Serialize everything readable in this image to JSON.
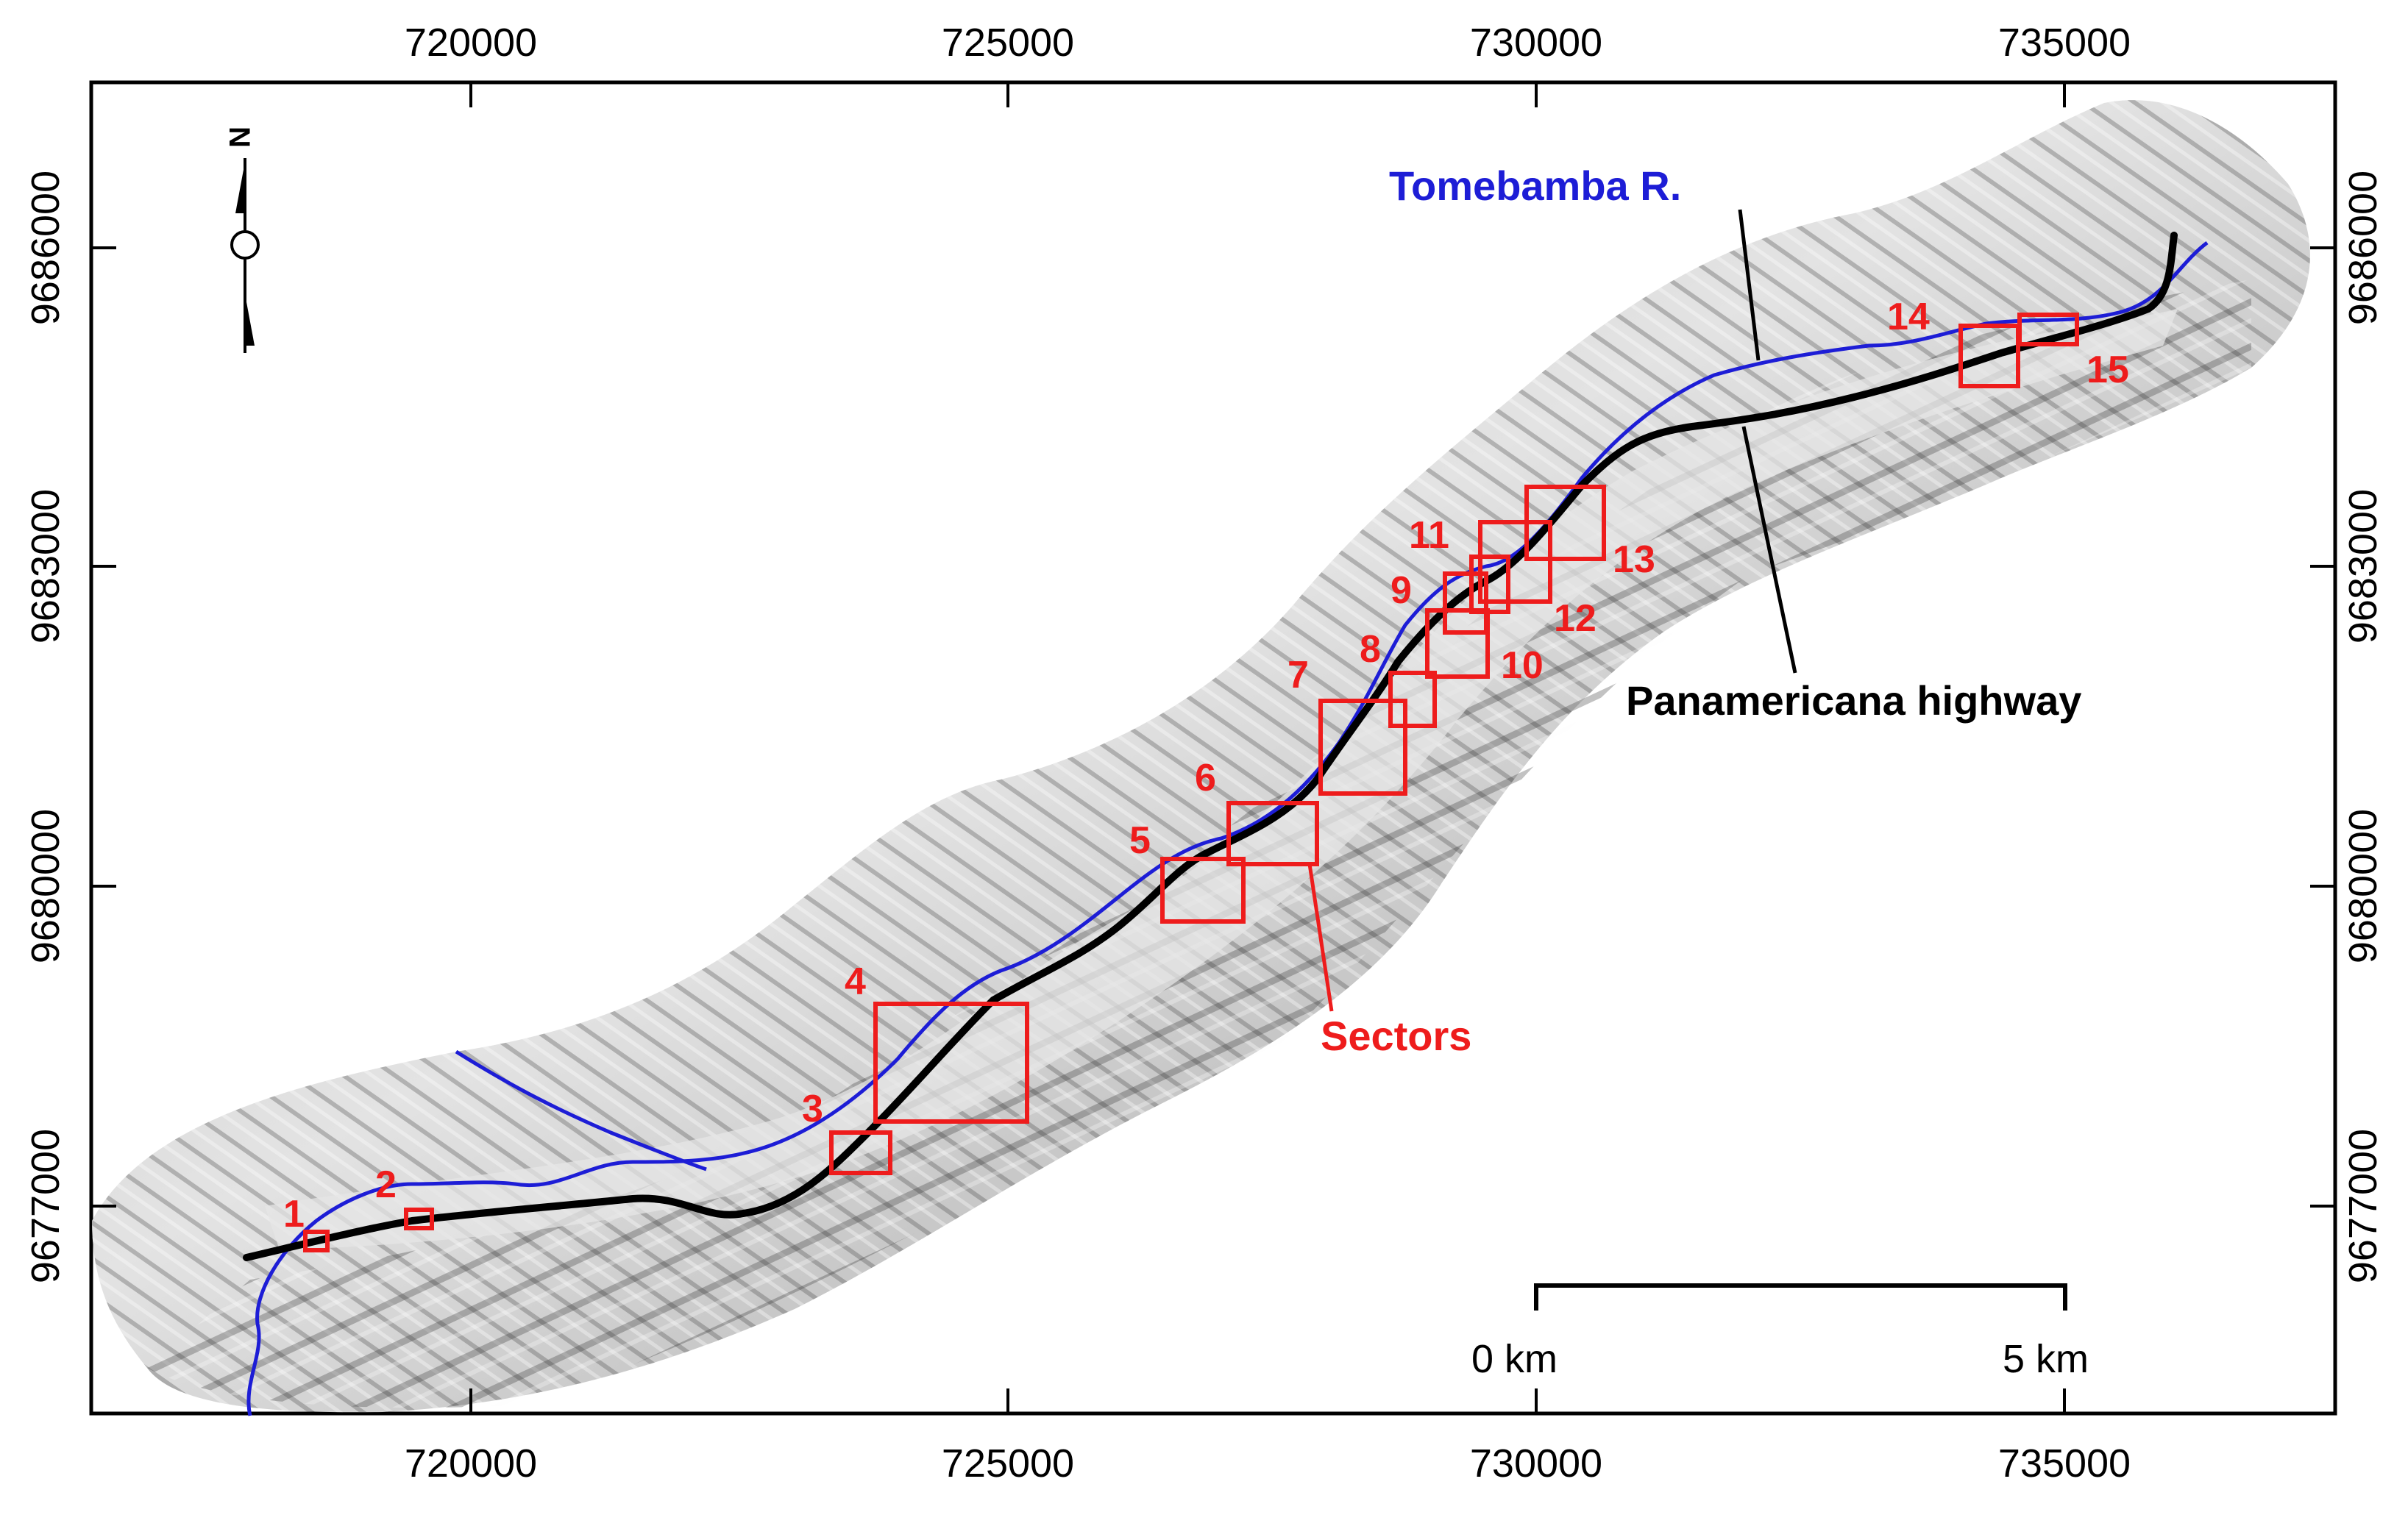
{
  "map": {
    "x_ticks": [
      "720000",
      "725000",
      "730000",
      "735000"
    ],
    "y_ticks": [
      "9686000",
      "9683000",
      "9680000",
      "9677000"
    ],
    "north_label": "N",
    "labels": {
      "river": "Tomebamba R.",
      "highway": "Panamericana highway",
      "sectors": "Sectors"
    },
    "scale_bar": {
      "start_label": "0 km",
      "end_label": "5 km"
    },
    "sectors": [
      {
        "id": "1"
      },
      {
        "id": "2"
      },
      {
        "id": "3"
      },
      {
        "id": "4"
      },
      {
        "id": "5"
      },
      {
        "id": "6"
      },
      {
        "id": "7"
      },
      {
        "id": "8"
      },
      {
        "id": "9"
      },
      {
        "id": "10"
      },
      {
        "id": "11"
      },
      {
        "id": "12"
      },
      {
        "id": "13"
      },
      {
        "id": "14"
      },
      {
        "id": "15"
      }
    ],
    "colors": {
      "river": "#1d1dd6",
      "highway": "#000000",
      "sector": "#ee1c1c",
      "relief_light": "#d9d9d9",
      "relief_dark": "#555555"
    }
  }
}
